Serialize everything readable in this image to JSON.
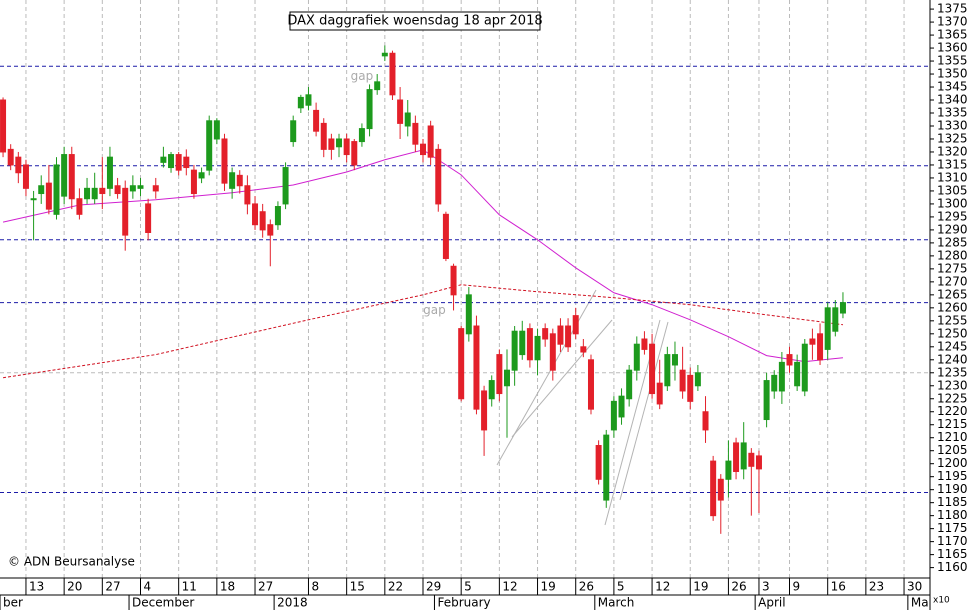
{
  "chart_data": {
    "type": "candlestick",
    "title": "DAX daggrafiek woensdag 18 apr 2018",
    "credit": "© ADN Beursanalyse",
    "multiplier": "x10",
    "up_color": "#1d9a1d",
    "down_color": "#e3202a",
    "level_color": "#1c1ca8",
    "grid": true,
    "ylim": [
      1156,
      1378.5
    ],
    "yticks": [
      1160,
      1165,
      1170,
      1175,
      1180,
      1185,
      1190,
      1195,
      1200,
      1205,
      1210,
      1215,
      1220,
      1225,
      1230,
      1235,
      1240,
      1245,
      1250,
      1255,
      1260,
      1265,
      1270,
      1275,
      1280,
      1285,
      1290,
      1295,
      1300,
      1305,
      1310,
      1315,
      1320,
      1325,
      1330,
      1335,
      1340,
      1345,
      1350,
      1355,
      1360,
      1365,
      1370,
      1375
    ],
    "xlim": [
      -0.4,
      121.4
    ],
    "x_ticks": [
      {
        "value": 3,
        "label": "13"
      },
      {
        "value": 8,
        "label": "20"
      },
      {
        "value": 13,
        "label": "27"
      },
      {
        "value": 18,
        "label": "4"
      },
      {
        "value": 23,
        "label": "11"
      },
      {
        "value": 28,
        "label": "18"
      },
      {
        "value": 33,
        "label": "27"
      },
      {
        "value": 40,
        "label": "8"
      },
      {
        "value": 45,
        "label": "15"
      },
      {
        "value": 50,
        "label": "22"
      },
      {
        "value": 55,
        "label": "29"
      },
      {
        "value": 60,
        "label": "5"
      },
      {
        "value": 65,
        "label": "12"
      },
      {
        "value": 70,
        "label": "19"
      },
      {
        "value": 75,
        "label": "26"
      },
      {
        "value": 80,
        "label": "5"
      },
      {
        "value": 85,
        "label": "12"
      },
      {
        "value": 90,
        "label": "19"
      },
      {
        "value": 95,
        "label": "26"
      },
      {
        "value": 99,
        "label": "3"
      },
      {
        "value": 103,
        "label": "9"
      },
      {
        "value": 108,
        "label": "16"
      },
      {
        "value": 113,
        "label": "23"
      },
      {
        "value": 118,
        "label": "30"
      }
    ],
    "month_ticks": [
      {
        "value": -0.4,
        "label": "ber"
      },
      {
        "value": 16.5,
        "label": "December"
      },
      {
        "value": 35.5,
        "label": "2018"
      },
      {
        "value": 56.5,
        "label": "February"
      },
      {
        "value": 77.5,
        "label": "March"
      },
      {
        "value": 98.5,
        "label": "April"
      },
      {
        "value": 118.5,
        "label": "Ma"
      }
    ],
    "open": [
      1340,
      1321,
      1318,
      1315,
      1302,
      1304,
      1308,
      1296,
      1303,
      1319,
      1302,
      1302,
      1302,
      1306,
      1306,
      1307,
      1306,
      1305,
      1306,
      1300,
      1307,
      1316,
      1314,
      1319,
      1318,
      1313,
      1310,
      1313,
      1325,
      1325,
      1306,
      1311,
      1307,
      1300,
      1297,
      1292,
      1292,
      1300,
      1324,
      1337,
      1338,
      1336,
      1331,
      1325,
      1322,
      1325,
      1324,
      1324,
      1329,
      1344,
      1357,
      1358,
      1340,
      1330,
      1331,
      1323,
      1330,
      1321,
      1296,
      1276,
      1252,
      1250,
      1253,
      1228,
      1225,
      1242,
      1230,
      1236,
      1242,
      1252,
      1240,
      1252,
      1250,
      1253,
      1253,
      1257,
      1245,
      1240,
      1207,
      1186,
      1213,
      1218,
      1225,
      1236,
      1248,
      1246,
      1231,
      1230,
      1238,
      1236,
      1234,
      1230,
      1220,
      1201,
      1194,
      1194,
      1208,
      1198,
      1204,
      1203,
      1217,
      1228,
      1228,
      1242,
      1230,
      1228,
      1248,
      1250,
      1244,
      1251,
      1258
    ],
    "high": [
      1341,
      1323,
      1320,
      1317,
      1305,
      1311,
      1315,
      1318,
      1322,
      1322,
      1306,
      1310,
      1312,
      1318,
      1322,
      1310,
      1309,
      1311,
      1310,
      1302,
      1310,
      1322,
      1320,
      1320,
      1321,
      1315,
      1314,
      1334,
      1333,
      1327,
      1314,
      1313,
      1311,
      1303,
      1300,
      1294,
      1301,
      1316,
      1334,
      1342,
      1345,
      1339,
      1333,
      1327,
      1327,
      1327,
      1325,
      1331,
      1346,
      1350,
      1361,
      1359,
      1345,
      1340,
      1334,
      1325,
      1332,
      1323,
      1297,
      1277,
      1253,
      1268,
      1257,
      1230,
      1234,
      1244,
      1244,
      1253,
      1255,
      1254,
      1252,
      1254,
      1252,
      1256,
      1256,
      1260,
      1248,
      1242,
      1209,
      1213,
      1226,
      1229,
      1238,
      1249,
      1251,
      1250,
      1240,
      1245,
      1247,
      1245,
      1237,
      1238,
      1226,
      1203,
      1196,
      1209,
      1210,
      1216,
      1206,
      1205,
      1235,
      1236,
      1243,
      1245,
      1242,
      1248,
      1252,
      1254,
      1262,
      1263,
      1266
    ],
    "low": [
      1318,
      1313,
      1308,
      1303,
      1286,
      1300,
      1296,
      1294,
      1300,
      1298,
      1294,
      1300,
      1300,
      1298,
      1303,
      1302,
      1282,
      1302,
      1303,
      1286,
      1302,
      1314,
      1312,
      1311,
      1311,
      1302,
      1308,
      1311,
      1323,
      1305,
      1302,
      1304,
      1296,
      1290,
      1287,
      1276,
      1290,
      1298,
      1322,
      1335,
      1336,
      1326,
      1318,
      1317,
      1318,
      1316,
      1313,
      1322,
      1326,
      1342,
      1355,
      1340,
      1325,
      1326,
      1320,
      1316,
      1315,
      1297,
      1278,
      1259,
      1224,
      1247,
      1219,
      1203,
      1222,
      1224,
      1210,
      1230,
      1240,
      1237,
      1234,
      1245,
      1232,
      1243,
      1243,
      1248,
      1241,
      1219,
      1192,
      1183,
      1210,
      1215,
      1222,
      1232,
      1242,
      1225,
      1221,
      1228,
      1232,
      1225,
      1221,
      1228,
      1208,
      1178,
      1173,
      1187,
      1194,
      1194,
      1180,
      1181,
      1214,
      1225,
      1223,
      1235,
      1228,
      1226,
      1240,
      1238,
      1240,
      1249,
      1256
    ],
    "close": [
      1320,
      1315,
      1312,
      1306,
      1302,
      1307,
      1298,
      1315,
      1319,
      1302,
      1296,
      1306,
      1306,
      1304,
      1318,
      1304,
      1288,
      1307,
      1307,
      1289,
      1305,
      1318,
      1319,
      1313,
      1314,
      1304,
      1312,
      1332,
      1332,
      1308,
      1312,
      1307,
      1300,
      1292,
      1290,
      1288,
      1299,
      1314,
      1332,
      1341,
      1342,
      1328,
      1321,
      1321,
      1325,
      1319,
      1315,
      1329,
      1344,
      1347,
      1358,
      1342,
      1331,
      1335,
      1323,
      1319,
      1318,
      1300,
      1279,
      1265,
      1225,
      1265,
      1221,
      1213,
      1232,
      1227,
      1236,
      1251,
      1251,
      1240,
      1249,
      1248,
      1236,
      1246,
      1245,
      1250,
      1243,
      1221,
      1194,
      1211,
      1224,
      1226,
      1236,
      1246,
      1244,
      1227,
      1223,
      1242,
      1242,
      1228,
      1224,
      1235,
      1213,
      1180,
      1186,
      1201,
      1197,
      1208,
      1199,
      1198,
      1232,
      1234,
      1239,
      1238,
      1239,
      1246,
      1246,
      1240,
      1260,
      1260,
      1262
    ],
    "moving_averages": [
      {
        "color": "#d020d0",
        "dash": false,
        "x": [
          0,
          10,
          20,
          30,
          38,
          45,
          50,
          55,
          60,
          65,
          70,
          75,
          80,
          85,
          90,
          95,
          100,
          105,
          110
        ],
        "values": [
          1293,
          1299.6,
          1301.6,
          1304.3,
          1307.3,
          1312.3,
          1317,
          1320.8,
          1311.2,
          1295.8,
          1286.2,
          1275.4,
          1265.8,
          1261.2,
          1255.4,
          1248.9,
          1241.6,
          1239.3,
          1240.8
        ]
      },
      {
        "color": "#d01020",
        "dash": true,
        "x": [
          0,
          20,
          40,
          55,
          60,
          70,
          80,
          90,
          100,
          110
        ],
        "values": [
          1233.1,
          1242,
          1255.4,
          1265,
          1268.9,
          1266.2,
          1263.9,
          1261.2,
          1257.3,
          1253.5
        ]
      }
    ],
    "levels": [
      1353,
      1314.7,
      1286.2,
      1262,
      1188.9
    ],
    "hgrid": [
      1235
    ],
    "annotations": [
      {
        "text": "gap",
        "x": 47,
        "price": 1349
      },
      {
        "text": "gap",
        "x": 56.5,
        "price": 1259
      }
    ]
  }
}
